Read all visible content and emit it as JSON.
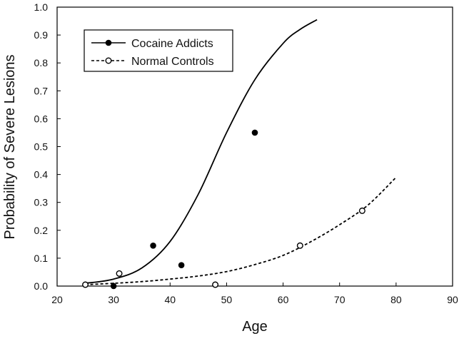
{
  "chart_data": {
    "type": "scatter",
    "title": "",
    "xlabel": "Age",
    "ylabel": "Probability of Severe Lesions",
    "xlim": [
      20,
      90
    ],
    "ylim": [
      0,
      1.0
    ],
    "x_ticks": [
      "20",
      "30",
      "40",
      "50",
      "60",
      "70",
      "80",
      "90"
    ],
    "y_ticks": [
      "0.0",
      "0.1",
      "0.2",
      "0.3",
      "0.4",
      "0.5",
      "0.6",
      "0.7",
      "0.8",
      "0.9",
      "1.0"
    ],
    "grid": false,
    "legend_position": "top-left",
    "series": [
      {
        "name": "Cocaine Addicts",
        "marker": "filled-circle",
        "line_style": "solid",
        "color": "#000000",
        "points": [
          {
            "x": 30,
            "y": 0.0
          },
          {
            "x": 37,
            "y": 0.145
          },
          {
            "x": 42,
            "y": 0.075
          },
          {
            "x": 55,
            "y": 0.55
          }
        ],
        "fit_curve": [
          {
            "x": 25,
            "y": 0.01
          },
          {
            "x": 30,
            "y": 0.025
          },
          {
            "x": 35,
            "y": 0.065
          },
          {
            "x": 40,
            "y": 0.16
          },
          {
            "x": 45,
            "y": 0.33
          },
          {
            "x": 50,
            "y": 0.55
          },
          {
            "x": 55,
            "y": 0.74
          },
          {
            "x": 60,
            "y": 0.87
          },
          {
            "x": 63,
            "y": 0.92
          },
          {
            "x": 66,
            "y": 0.955
          }
        ]
      },
      {
        "name": "Normal Controls",
        "marker": "open-circle",
        "line_style": "dashed",
        "color": "#000000",
        "points": [
          {
            "x": 25,
            "y": 0.005
          },
          {
            "x": 31,
            "y": 0.045
          },
          {
            "x": 48,
            "y": 0.005
          },
          {
            "x": 63,
            "y": 0.145
          },
          {
            "x": 74,
            "y": 0.27
          }
        ],
        "fit_curve": [
          {
            "x": 25,
            "y": 0.005
          },
          {
            "x": 30,
            "y": 0.01
          },
          {
            "x": 35,
            "y": 0.016
          },
          {
            "x": 40,
            "y": 0.025
          },
          {
            "x": 45,
            "y": 0.036
          },
          {
            "x": 50,
            "y": 0.052
          },
          {
            "x": 55,
            "y": 0.077
          },
          {
            "x": 60,
            "y": 0.11
          },
          {
            "x": 65,
            "y": 0.16
          },
          {
            "x": 70,
            "y": 0.22
          },
          {
            "x": 75,
            "y": 0.29
          },
          {
            "x": 80,
            "y": 0.39
          }
        ]
      }
    ]
  }
}
